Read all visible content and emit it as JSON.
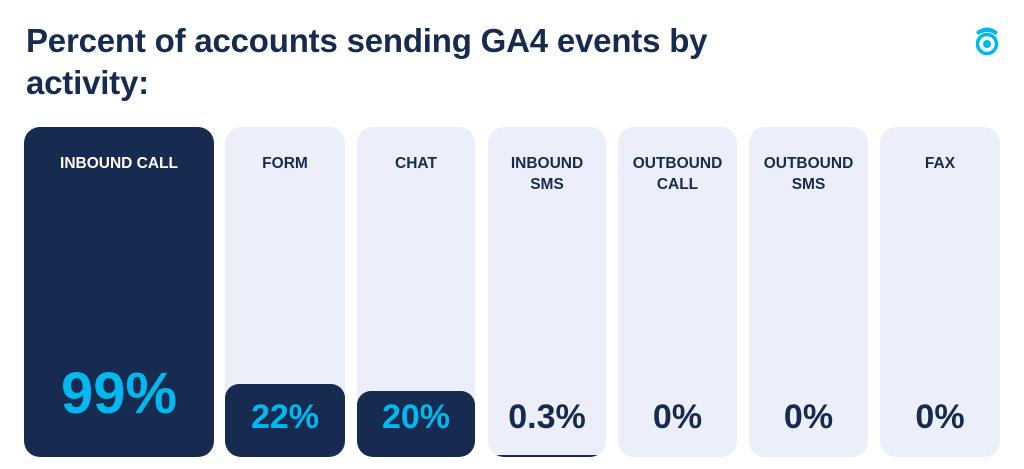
{
  "title": "Percent of accounts sending GA4 events by activity:",
  "logo": "phone-target-icon",
  "colors": {
    "dark": "#172a4f",
    "accent": "#00b8f0",
    "track": "#eceffa"
  },
  "chart_data": {
    "type": "bar",
    "title": "Percent of accounts sending GA4 events by activity:",
    "categories": [
      "INBOUND CALL",
      "FORM",
      "CHAT",
      "INBOUND\nSMS",
      "OUTBOUND\nCALL",
      "OUTBOUND\nSMS",
      "FAX"
    ],
    "values": [
      99,
      22,
      20,
      0.3,
      0,
      0,
      0
    ],
    "labels": [
      "99%",
      "22%",
      "20%",
      "0.3%",
      "0%",
      "0%",
      "0%"
    ],
    "ylim": [
      0,
      100
    ],
    "grid": false
  }
}
